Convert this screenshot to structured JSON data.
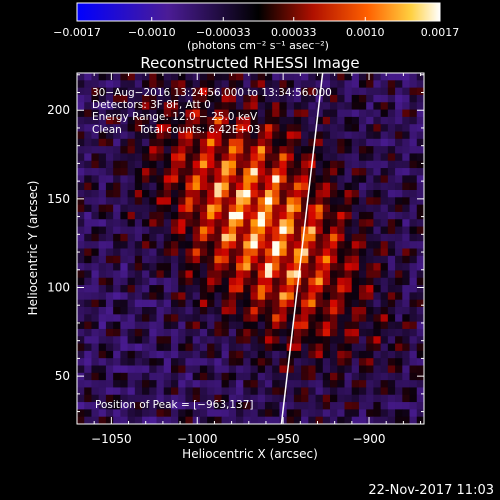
{
  "chart_data": {
    "type": "heatmap",
    "title": "Reconstructed RHESSI Image",
    "xlabel": "Heliocentric X (arcsec)",
    "ylabel": "Heliocentric Y (arcsec)",
    "xlim": [
      -1070,
      -868
    ],
    "ylim": [
      23,
      221
    ],
    "xticks": [
      -1050,
      -1000,
      -950,
      -900
    ],
    "xtick_labels": [
      "−1050",
      "−1000",
      "−950",
      "−900"
    ],
    "yticks": [
      50,
      100,
      150,
      200
    ],
    "ytick_labels": [
      "50",
      "100",
      "150",
      "200"
    ],
    "colorbar": {
      "colormap": "hot",
      "low_color": "#0000ff",
      "range": [
        -0.0017,
        0.0017
      ],
      "ticks": [
        -0.0017,
        -0.001,
        -0.00033,
        0.00033,
        0.001,
        0.0017
      ],
      "tick_labels": [
        "−0.0017",
        "−0.0010",
        "−0.00033",
        "0.00033",
        "0.0010",
        "0.0017"
      ],
      "unit_label": "(photons cm⁻² s⁻¹ asec⁻²)"
    },
    "annotations": [
      "30−Aug−2016 13:24:56.000 to 13:34:56.000",
      "Detectors: 3F 8F, Att 0",
      "Energy Range: 12.0 − 25.0 keV",
      "Clean     Total counts: 6.42E+03"
    ],
    "peak_label": "Position of Peak = [−963,137]",
    "peak": [
      -963,
      137
    ],
    "limb_line": [
      [
        -951,
        23
      ],
      [
        -927,
        221
      ]
    ],
    "grid": false,
    "legend": "none"
  },
  "footer": {
    "date": "22-Nov-2017 11:03"
  }
}
